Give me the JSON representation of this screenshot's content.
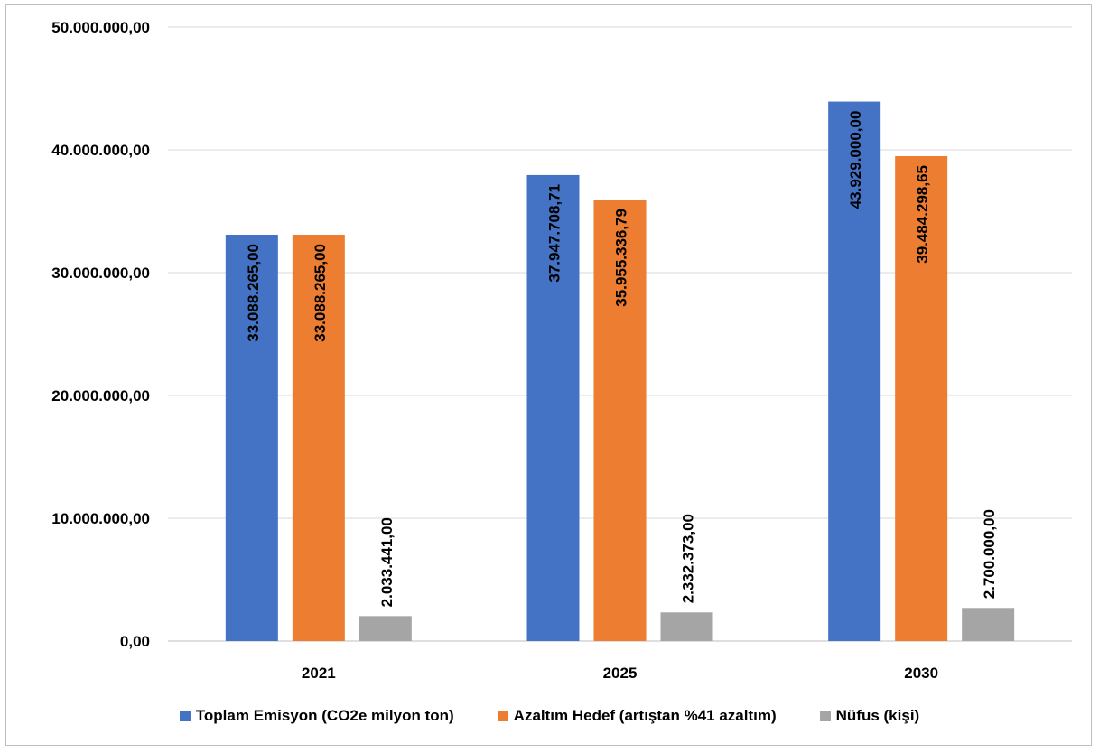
{
  "chart_data": {
    "type": "bar",
    "categories": [
      "2021",
      "2025",
      "2030"
    ],
    "series": [
      {
        "name": "Toplam Emisyon (CO2e milyon ton)",
        "color": "#4472c4",
        "values": [
          33088265.0,
          37947708.71,
          43929000.0
        ],
        "labels": [
          "33.088.265,00",
          "37.947.708,71",
          "43.929.000,00"
        ]
      },
      {
        "name": "Azaltım Hedef (artıştan %41 azaltım)",
        "color": "#ed7d31",
        "values": [
          33088265.0,
          35955336.79,
          39484298.65
        ],
        "labels": [
          "33.088.265,00",
          "35.955.336,79",
          "39.484.298,65"
        ]
      },
      {
        "name": "Nüfus (kişi)",
        "color": "#a5a5a5",
        "values": [
          2033441.0,
          2332373.0,
          2700000.0
        ],
        "labels": [
          "2.033.441,00",
          "2.332.373,00",
          "2.700.000,00"
        ]
      }
    ],
    "ylim": [
      0,
      50000000
    ],
    "yticks": [
      0,
      10000000,
      20000000,
      30000000,
      40000000,
      50000000
    ],
    "ytick_labels": [
      "0,00",
      "10.000.000,00",
      "20.000.000,00",
      "30.000.000,00",
      "40.000.000,00",
      "50.000.000,00"
    ],
    "grid": true,
    "legend_position": "bottom"
  }
}
